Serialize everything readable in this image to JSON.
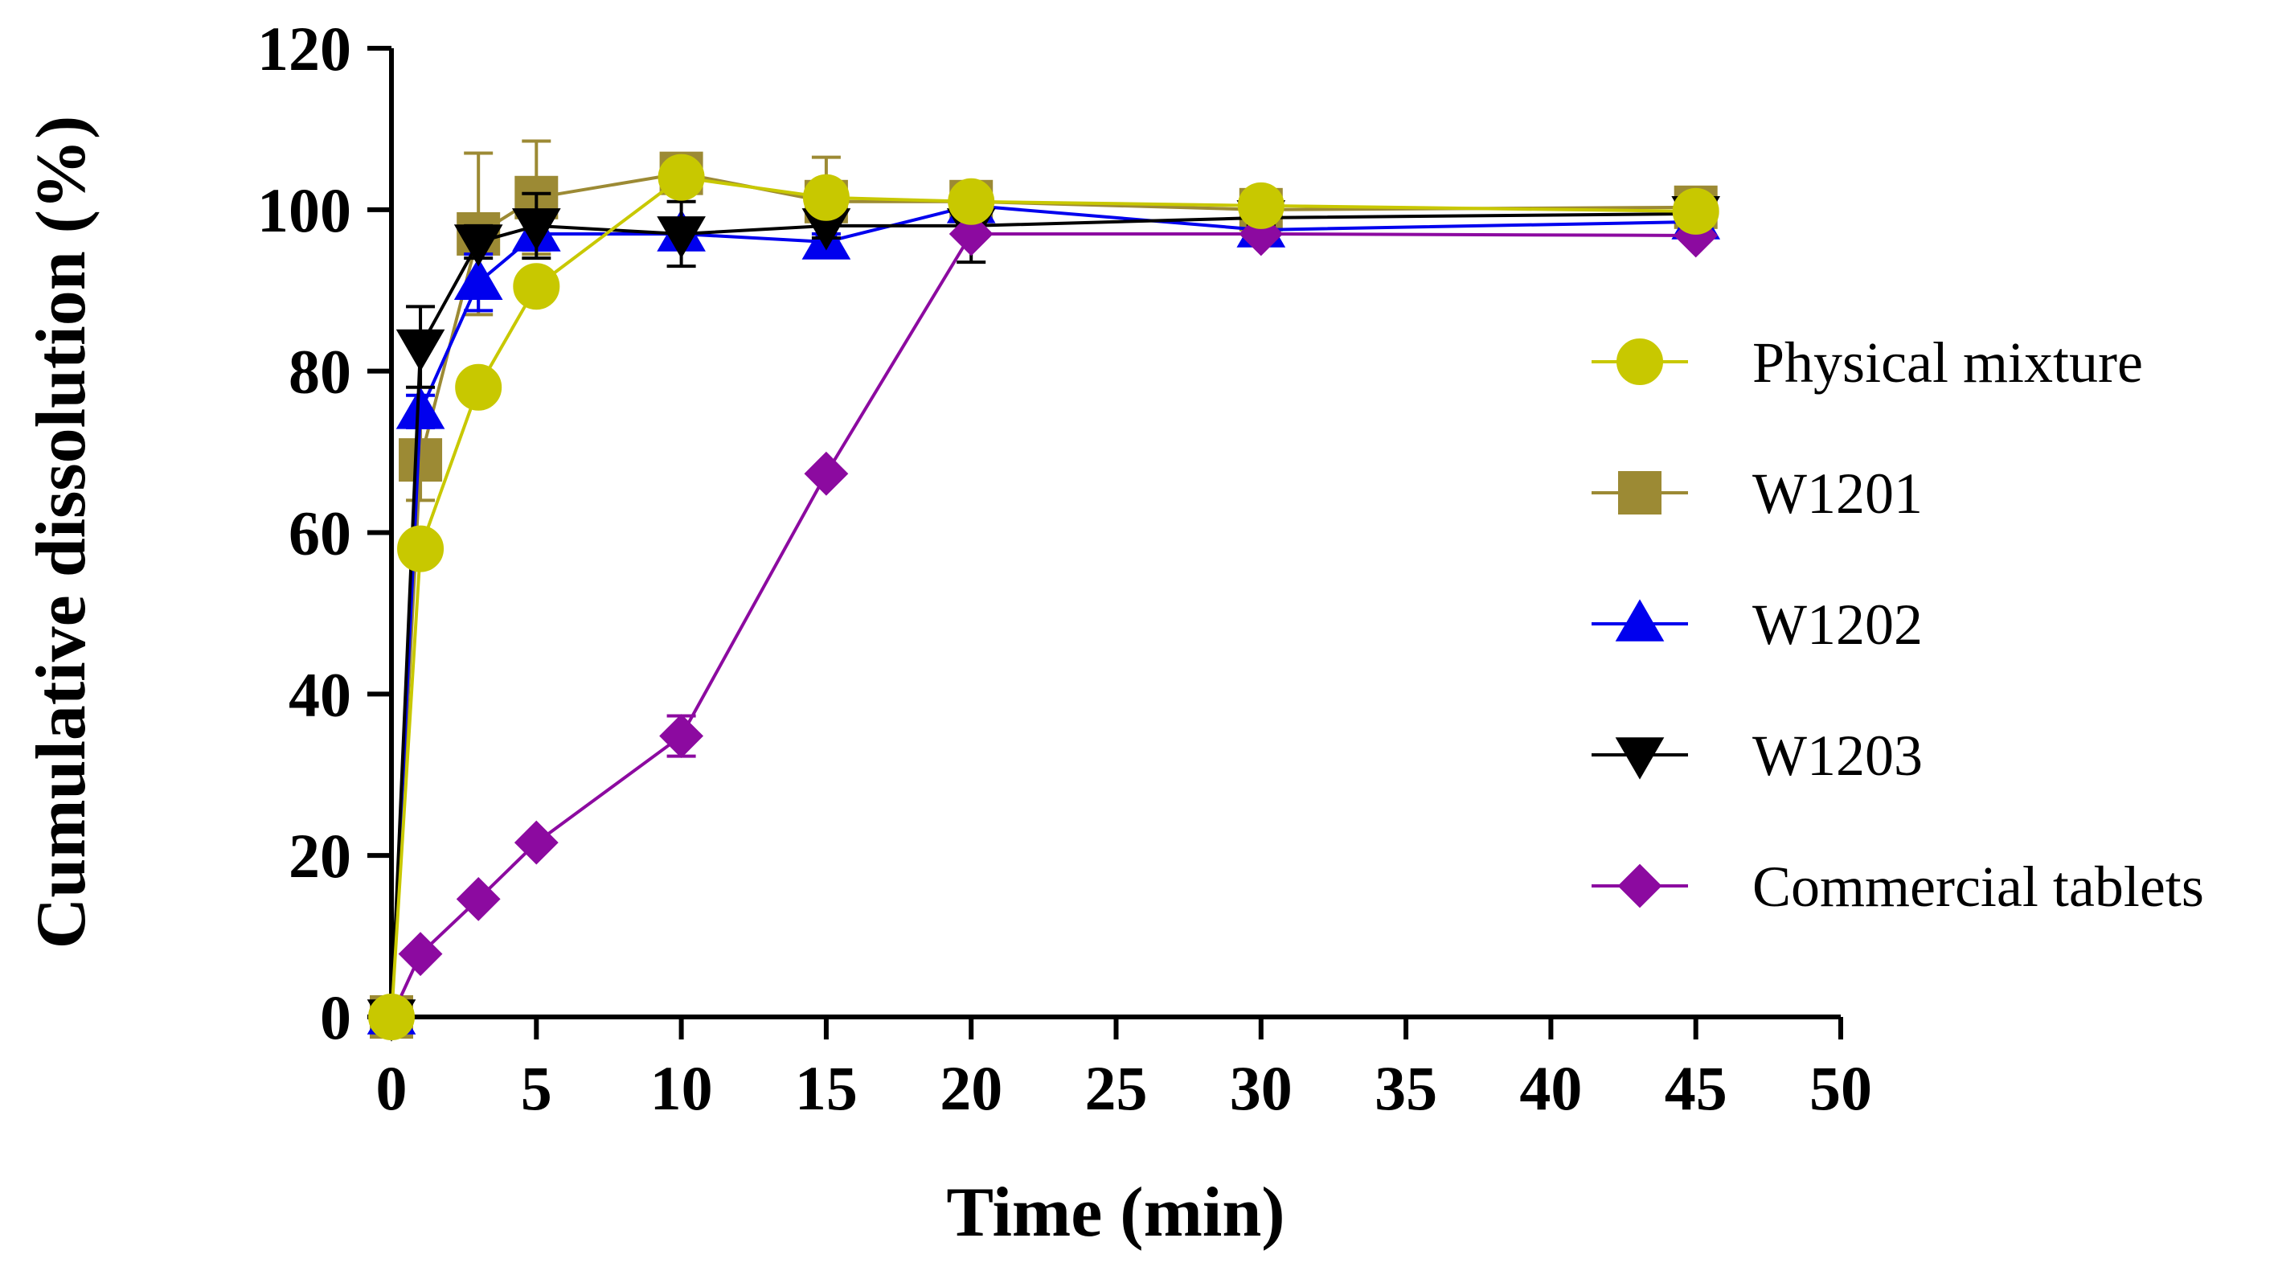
{
  "chart_data": {
    "type": "line",
    "title": "",
    "xlabel": "Time (min)",
    "ylabel": "Cumulative dissolution (%)",
    "xlim": [
      0,
      50
    ],
    "ylim": [
      0,
      120
    ],
    "xticks": [
      "0",
      "5",
      "10",
      "15",
      "20",
      "25",
      "30",
      "35",
      "40",
      "45",
      "50"
    ],
    "yticks": [
      "0",
      "20",
      "40",
      "60",
      "80",
      "100",
      "120"
    ],
    "grid": false,
    "legend_position": "right",
    "x": [
      0,
      1,
      3,
      5,
      10,
      15,
      20,
      30,
      45
    ],
    "series": [
      {
        "name": "Physical mixture",
        "color": "#c8c800",
        "marker": "circle",
        "values": [
          0,
          58,
          78,
          90.5,
          104,
          101.5,
          101,
          100.5,
          99.8
        ],
        "error": [
          0,
          0,
          0,
          0,
          0,
          0,
          0,
          0,
          0
        ]
      },
      {
        "name": "W1201",
        "color": "#9c8a34",
        "marker": "square",
        "values": [
          0,
          69,
          97,
          101.5,
          104.5,
          101,
          101,
          100,
          100.3
        ],
        "error": [
          0,
          5,
          10,
          7,
          1.5,
          5.5,
          0.5,
          2,
          0.5
        ]
      },
      {
        "name": "W1202",
        "color": "#0000ee",
        "marker": "triangle-up",
        "values": [
          0,
          75,
          91,
          97,
          97,
          96,
          100.5,
          97.5,
          98.5
        ],
        "error": [
          0,
          2,
          3.5,
          2,
          1,
          1,
          0.5,
          1,
          1
        ]
      },
      {
        "name": "W1203",
        "color": "#000000",
        "marker": "triangle-down",
        "values": [
          0,
          83,
          96,
          98,
          97,
          98,
          98,
          99,
          99.5
        ],
        "error": [
          0,
          5,
          2,
          4,
          4,
          1.5,
          4.5,
          1,
          1
        ]
      },
      {
        "name": "Commercial tablets",
        "color": "#8c0aa0",
        "marker": "diamond",
        "values": [
          0,
          7.8,
          14.6,
          21.6,
          34.8,
          67.3,
          97,
          97,
          96.8
        ],
        "error": [
          0,
          0.5,
          0.5,
          0.5,
          2.5,
          0.5,
          0.5,
          0.5,
          0.5
        ]
      }
    ]
  }
}
